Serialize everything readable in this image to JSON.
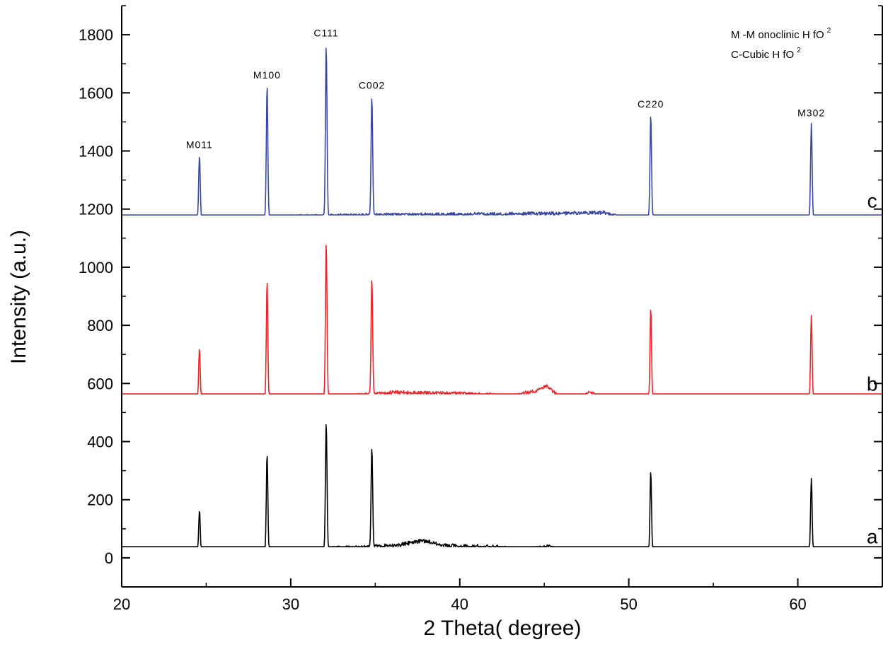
{
  "chart_data": {
    "type": "line",
    "title": "",
    "xlabel": "2 Theta( degree)",
    "ylabel": "Intensity (a.u.)",
    "xlim": [
      20,
      65
    ],
    "ylim": [
      -100,
      1900
    ],
    "x_ticks": [
      20,
      30,
      40,
      50,
      60
    ],
    "y_ticks": [
      0,
      200,
      400,
      600,
      800,
      1000,
      1200,
      1400,
      1600,
      1800
    ],
    "grid": false,
    "legend": {
      "position": "top-right",
      "lines": [
        {
          "text": "M -M onoclinic H fO",
          "sup": "2"
        },
        {
          "text": "C-Cubic H fO",
          "sup": "2"
        }
      ]
    },
    "peak_labels": [
      {
        "text": "M011",
        "x": 24.6,
        "y": 1385
      },
      {
        "text": "M100",
        "x": 28.6,
        "y": 1625
      },
      {
        "text": "C111",
        "x": 32.1,
        "y": 1770
      },
      {
        "text": "C002",
        "x": 34.8,
        "y": 1590
      },
      {
        "text": "C220",
        "x": 51.3,
        "y": 1525
      },
      {
        "text": "M302",
        "x": 60.8,
        "y": 1495
      }
    ],
    "series": [
      {
        "name": "a",
        "color": "#000000",
        "label_pos": [
          64.4,
          50
        ],
        "baseline": [
          [
            20,
            15
          ],
          [
            28,
            18
          ],
          [
            30,
            30
          ],
          [
            34,
            35
          ],
          [
            36.5,
            45
          ],
          [
            37.8,
            60
          ],
          [
            39,
            42
          ],
          [
            42,
            38
          ],
          [
            44,
            28
          ],
          [
            45.3,
            40
          ],
          [
            46,
            25
          ],
          [
            50,
            18
          ],
          [
            60,
            18
          ],
          [
            62,
            20
          ],
          [
            65,
            18
          ]
        ],
        "peaks": [
          [
            24.6,
            165
          ],
          [
            28.6,
            360
          ],
          [
            32.1,
            470
          ],
          [
            34.8,
            385
          ],
          [
            51.3,
            300
          ],
          [
            60.8,
            275
          ]
        ],
        "noise": 7
      },
      {
        "name": "b",
        "color": "#e8262c",
        "label_pos": [
          64.4,
          575
        ],
        "baseline": [
          [
            20,
            540
          ],
          [
            28,
            542
          ],
          [
            30,
            550
          ],
          [
            34,
            560
          ],
          [
            36,
            570
          ],
          [
            40,
            565
          ],
          [
            43,
            558
          ],
          [
            44.5,
            575
          ],
          [
            45.1,
            592
          ],
          [
            45.8,
            560
          ],
          [
            47,
            550
          ],
          [
            47.7,
            572
          ],
          [
            48.3,
            550
          ],
          [
            50,
            545
          ],
          [
            60,
            545
          ],
          [
            65,
            545
          ]
        ],
        "peaks": [
          [
            24.6,
            720
          ],
          [
            28.6,
            955
          ],
          [
            32.1,
            1090
          ],
          [
            34.8,
            965
          ],
          [
            51.3,
            860
          ],
          [
            60.8,
            835
          ]
        ],
        "noise": 6
      },
      {
        "name": "c",
        "color": "#3848a0",
        "label_pos": [
          64.4,
          1205
        ],
        "baseline": [
          [
            20,
            1168
          ],
          [
            28,
            1170
          ],
          [
            30,
            1175
          ],
          [
            35,
            1180
          ],
          [
            40,
            1182
          ],
          [
            46,
            1185
          ],
          [
            48.5,
            1188
          ],
          [
            49.5,
            1172
          ],
          [
            55,
            1170
          ],
          [
            60,
            1172
          ],
          [
            65,
            1168
          ]
        ],
        "peaks": [
          [
            24.6,
            1385
          ],
          [
            28.6,
            1625
          ],
          [
            32.1,
            1770
          ],
          [
            34.8,
            1590
          ],
          [
            51.3,
            1525
          ],
          [
            60.8,
            1495
          ]
        ],
        "noise": 6
      }
    ]
  }
}
